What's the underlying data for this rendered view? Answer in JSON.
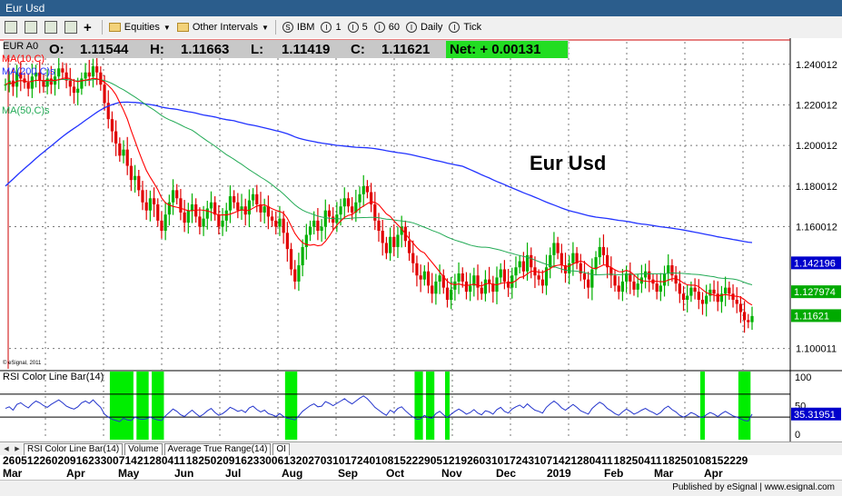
{
  "window": {
    "title": "Eur Usd"
  },
  "toolbar": {
    "items": [
      {
        "label": "Equities",
        "icon": "folder-icon",
        "dropdown": true
      },
      {
        "label": "Other Intervals",
        "icon": "folder-icon",
        "dropdown": true
      },
      {
        "label": "IBM",
        "icon": "S"
      },
      {
        "label": "1",
        "icon": "I"
      },
      {
        "label": "5",
        "icon": "I"
      },
      {
        "label": "60",
        "icon": "I"
      },
      {
        "label": "Daily",
        "icon": "I"
      },
      {
        "label": "Tick",
        "icon": "I"
      }
    ]
  },
  "quote": {
    "symbol": "EUR A0",
    "O": "1.11544",
    "H": "1.11663",
    "L": "1.11419",
    "C": "1.11621",
    "net": "Net: + 0.00131",
    "labels": {
      "o": "O:",
      "h": "H:",
      "l": "L:",
      "c": "C:"
    }
  },
  "chart_data": {
    "type": "line",
    "title": "Eur Usd",
    "copyright": "© eSignal, 2011",
    "ylim": [
      1.09,
      1.252
    ],
    "price_ticks": [
      "1.240012",
      "1.220012",
      "1.200012",
      "1.180012",
      "1.160012",
      "1.100011"
    ],
    "date_labels": [
      "26",
      "05",
      "12",
      "26",
      "02",
      "09",
      "16",
      "23",
      "30",
      "07",
      "14",
      "21",
      "28",
      "04",
      "11",
      "18",
      "25",
      "02",
      "09",
      "16",
      "23",
      "30",
      "06",
      "13",
      "20",
      "27",
      "03",
      "10",
      "17",
      "24",
      "01",
      "08",
      "15",
      "22",
      "29",
      "05",
      "12",
      "19",
      "26",
      "03",
      "10",
      "17",
      "24",
      "31",
      "07",
      "14",
      "21",
      "28",
      "04",
      "11",
      "18",
      "25",
      "04",
      "11",
      "18",
      "25",
      "01",
      "08",
      "15",
      "22",
      "29"
    ],
    "month_labels": [
      "Mar",
      "Apr",
      "May",
      "Jun",
      "Jul",
      "Aug",
      "Sep",
      "Oct",
      "Nov",
      "Dec",
      "2019",
      "Feb",
      "Mar",
      "Apr"
    ],
    "price_bars": {
      "description": "Daily EUR/USD price series (closing values, estimated)",
      "close": [
        1.23,
        1.232,
        1.229,
        1.236,
        1.233,
        1.231,
        1.228,
        1.234,
        1.236,
        1.232,
        1.229,
        1.233,
        1.23,
        1.234,
        1.238,
        1.236,
        1.232,
        1.229,
        1.226,
        1.228,
        1.233,
        1.236,
        1.234,
        1.239,
        1.236,
        1.23,
        1.221,
        1.213,
        1.207,
        1.201,
        1.195,
        1.198,
        1.19,
        1.183,
        1.185,
        1.178,
        1.172,
        1.168,
        1.174,
        1.171,
        1.163,
        1.158,
        1.166,
        1.172,
        1.178,
        1.174,
        1.167,
        1.162,
        1.168,
        1.171,
        1.165,
        1.16,
        1.164,
        1.169,
        1.172,
        1.166,
        1.16,
        1.163,
        1.168,
        1.175,
        1.172,
        1.168,
        1.17,
        1.166,
        1.173,
        1.176,
        1.171,
        1.167,
        1.17,
        1.165,
        1.163,
        1.16,
        1.164,
        1.157,
        1.149,
        1.139,
        1.133,
        1.141,
        1.15,
        1.156,
        1.16,
        1.163,
        1.158,
        1.16,
        1.168,
        1.165,
        1.162,
        1.166,
        1.17,
        1.174,
        1.17,
        1.167,
        1.172,
        1.176,
        1.18,
        1.177,
        1.171,
        1.163,
        1.158,
        1.152,
        1.147,
        1.155,
        1.15,
        1.156,
        1.16,
        1.153,
        1.147,
        1.142,
        1.136,
        1.134,
        1.138,
        1.131,
        1.127,
        1.133,
        1.136,
        1.13,
        1.124,
        1.129,
        1.133,
        1.137,
        1.133,
        1.128,
        1.131,
        1.136,
        1.13,
        1.127,
        1.134,
        1.132,
        1.128,
        1.135,
        1.139,
        1.133,
        1.13,
        1.136,
        1.14,
        1.143,
        1.138,
        1.146,
        1.14,
        1.136,
        1.134,
        1.131,
        1.14,
        1.146,
        1.152,
        1.147,
        1.141,
        1.137,
        1.142,
        1.147,
        1.142,
        1.137,
        1.134,
        1.13,
        1.139,
        1.145,
        1.15,
        1.146,
        1.14,
        1.136,
        1.131,
        1.128,
        1.133,
        1.137,
        1.133,
        1.129,
        1.132,
        1.135,
        1.138,
        1.134,
        1.132,
        1.128,
        1.131,
        1.137,
        1.141,
        1.136,
        1.132,
        1.127,
        1.124,
        1.126,
        1.13,
        1.128,
        1.124,
        1.122,
        1.126,
        1.129,
        1.127,
        1.123,
        1.127,
        1.13,
        1.127,
        1.124,
        1.122,
        1.118,
        1.114,
        1.113,
        1.116
      ]
    },
    "series": [
      {
        "name": "MA(10,C)",
        "color": "#ff0000"
      },
      {
        "name": "MA(200,C)s",
        "color": "#2233ff"
      },
      {
        "name": "MA(50,C)s",
        "color": "#22aa55"
      }
    ],
    "price_markers": [
      {
        "label": "1.142196",
        "value": 1.142196,
        "color": "#0000cc"
      },
      {
        "label": "1.127974",
        "value": 1.127974,
        "color": "#00aa00"
      },
      {
        "label": "1.11621",
        "value": 1.11621,
        "color": "#00aa00"
      }
    ],
    "rsi_panel": {
      "title": "RSI Color Line Bar(14)",
      "value_label": "35.31951",
      "ticks": [
        "100",
        "50",
        "0"
      ],
      "levels": [
        70,
        30
      ],
      "values": [
        45,
        48,
        42,
        52,
        55,
        50,
        46,
        53,
        58,
        55,
        50,
        47,
        52,
        56,
        60,
        55,
        49,
        46,
        44,
        48,
        55,
        58,
        54,
        60,
        53,
        47,
        35,
        30,
        26,
        24,
        22,
        28,
        25,
        24,
        30,
        27,
        26,
        27,
        30,
        27,
        25,
        24,
        32,
        38,
        44,
        40,
        34,
        31,
        37,
        42,
        36,
        31,
        35,
        41,
        45,
        38,
        33,
        36,
        41,
        47,
        44,
        40,
        42,
        38,
        46,
        49,
        43,
        39,
        42,
        36,
        34,
        31,
        36,
        31,
        28,
        27,
        25,
        32,
        40,
        45,
        50,
        53,
        48,
        49,
        57,
        54,
        50,
        54,
        58,
        62,
        57,
        53,
        58,
        63,
        67,
        62,
        55,
        47,
        42,
        37,
        33,
        42,
        38,
        45,
        48,
        41,
        35,
        30,
        26,
        27,
        33,
        29,
        28,
        36,
        40,
        34,
        29,
        35,
        40,
        44,
        40,
        35,
        38,
        43,
        37,
        34,
        41,
        39,
        35,
        43,
        47,
        40,
        37,
        44,
        48,
        51,
        46,
        53,
        47,
        42,
        40,
        37,
        47,
        53,
        58,
        53,
        46,
        42,
        47,
        52,
        47,
        41,
        38,
        35,
        45,
        51,
        56,
        52,
        45,
        41,
        36,
        33,
        39,
        44,
        40,
        35,
        38,
        42,
        45,
        41,
        38,
        34,
        38,
        45,
        49,
        43,
        39,
        33,
        30,
        33,
        38,
        35,
        31,
        29,
        34,
        38,
        35,
        31,
        36,
        40,
        36,
        32,
        30,
        27,
        24,
        23,
        35
      ],
      "oversold_bars": "green vertical bars where RSI < 30",
      "overbought_bars": "red vertical bars where RSI > 70"
    },
    "grid": true
  },
  "tabs": [
    {
      "label": "RSI Color Line Bar(14)"
    },
    {
      "label": "Volume"
    },
    {
      "label": "Average True Range(14)"
    },
    {
      "label": "OI"
    }
  ],
  "footer": {
    "text": "Published by eSignal | www.esignal.com"
  }
}
